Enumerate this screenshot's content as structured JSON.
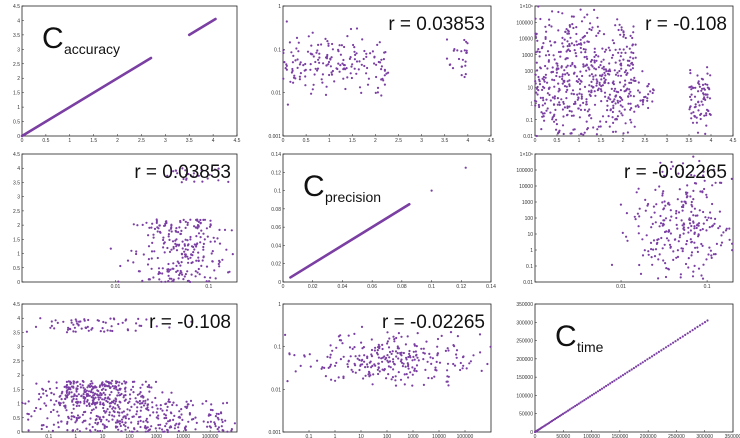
{
  "chart_data": [
    {
      "type": "line",
      "title": "",
      "diagonal_label": {
        "main": "C",
        "sub": "accuracy"
      },
      "x_ticks": [
        "0",
        "0.5",
        "1",
        "1.5",
        "2",
        "2.5",
        "3",
        "3.5",
        "4",
        "4.5"
      ],
      "y_ticks": [
        "0",
        "0.5",
        "1",
        "1.5",
        "2",
        "2.5",
        "3",
        "3.5",
        "4",
        "4.5"
      ],
      "xlim": [
        0,
        4.5
      ],
      "ylim": [
        0,
        4.5
      ],
      "series": [
        {
          "x": [
            0.0,
            2.7
          ],
          "y": [
            0.0,
            2.7
          ]
        },
        {
          "x": [
            3.5,
            4.05
          ],
          "y": [
            3.5,
            4.05
          ]
        }
      ]
    },
    {
      "type": "scatter",
      "annotation": "r = 0.03853",
      "x_ticks": [
        "0",
        "0.5",
        "1",
        "1.5",
        "2",
        "2.5",
        "3",
        "3.5",
        "4",
        "4.5"
      ],
      "y_ticks": [
        "0.001",
        "0.01",
        "0.1",
        "1"
      ],
      "xlim": [
        0,
        4.5
      ],
      "ylim": [
        0.001,
        1
      ],
      "y_scale": "log",
      "clusters": [
        {
          "x_range": [
            0.0,
            2.3
          ],
          "y_log_center": -1.35,
          "y_log_spread": 0.35,
          "n": 180
        },
        {
          "x_range": [
            3.5,
            4.0
          ],
          "y_log_center": -1.2,
          "y_log_spread": 0.3,
          "n": 25
        }
      ]
    },
    {
      "type": "scatter",
      "annotation": "r = -0.108",
      "x_ticks": [
        "0",
        "0.5",
        "1",
        "1.5",
        "2",
        "2.5",
        "3",
        "3.5",
        "4",
        "4.5"
      ],
      "y_ticks": [
        "0.01",
        "0.1",
        "1",
        "10",
        "100",
        "1000",
        "10000",
        "100000",
        "1×10⁶"
      ],
      "xlim": [
        0,
        4.5
      ],
      "ylim": [
        0.01,
        1000000
      ],
      "y_scale": "log",
      "clusters": [
        {
          "x_range": [
            0.0,
            2.3
          ],
          "y_log_center": 1.5,
          "y_log_spread": 2.2,
          "n": 600
        },
        {
          "x_range": [
            2.3,
            2.7
          ],
          "y_log_center": 0.5,
          "y_log_spread": 0.6,
          "n": 25
        },
        {
          "x_range": [
            3.5,
            4.0
          ],
          "y_log_center": 0.2,
          "y_log_spread": 1.0,
          "n": 80
        }
      ]
    },
    {
      "type": "scatter",
      "annotation": "r = 0.03853",
      "x_ticks": [
        "0.01",
        "0.1"
      ],
      "y_ticks": [
        "0",
        "0.5",
        "1",
        "1.5",
        "2",
        "2.5",
        "3",
        "3.5",
        "4",
        "4.5"
      ],
      "xlim": [
        0.001,
        0.2
      ],
      "x_scale": "log",
      "ylim": [
        0,
        4.5
      ],
      "clusters": [
        {
          "x_log_center": -1.3,
          "x_log_spread": 0.28,
          "y_range": [
            0.0,
            2.2
          ],
          "n": 260
        },
        {
          "x_log_center": -1.2,
          "x_log_spread": 0.22,
          "y_range": [
            3.5,
            4.0
          ],
          "n": 25
        }
      ]
    },
    {
      "type": "line",
      "diagonal_label": {
        "main": "C",
        "sub": "precision"
      },
      "x_ticks": [
        "0",
        "0.02",
        "0.04",
        "0.06",
        "0.08",
        "0.1",
        "0.12",
        "0.14"
      ],
      "y_ticks": [
        "0",
        "0.02",
        "0.04",
        "0.06",
        "0.08",
        "0.1",
        "0.12",
        "0.14"
      ],
      "xlim": [
        0,
        0.14
      ],
      "ylim": [
        0,
        0.14
      ],
      "series": [
        {
          "x": [
            0.005,
            0.085
          ],
          "y": [
            0.005,
            0.085
          ]
        }
      ],
      "outliers": [
        {
          "x": 0.1,
          "y": 0.1
        },
        {
          "x": 0.123,
          "y": 0.125
        }
      ]
    },
    {
      "type": "scatter",
      "annotation": "r = -0.02265",
      "x_ticks": [
        "0.01",
        "0.1"
      ],
      "y_ticks": [
        "0.01",
        "0.1",
        "1",
        "10",
        "100",
        "1000",
        "10000",
        "100000",
        "1×10⁶"
      ],
      "xlim": [
        0.001,
        0.2
      ],
      "x_scale": "log",
      "ylim": [
        0.01,
        1000000
      ],
      "y_scale": "log",
      "clusters": [
        {
          "x_log_center": -1.3,
          "x_log_spread": 0.3,
          "y_log_center": 1.5,
          "y_log_spread": 1.7,
          "n": 280
        }
      ]
    },
    {
      "type": "scatter",
      "annotation": "r = -0.108",
      "x_ticks": [
        "0.1",
        "1",
        "10",
        "100",
        "1000",
        "10000",
        "100000"
      ],
      "y_ticks": [
        "0",
        "0.5",
        "1",
        "1.5",
        "2",
        "2.5",
        "3",
        "3.5",
        "4",
        "4.5"
      ],
      "xlim": [
        0.01,
        1000000
      ],
      "x_scale": "log",
      "ylim": [
        0,
        4.5
      ],
      "clusters": [
        {
          "x_log_center": 0.8,
          "x_log_spread": 1.0,
          "y_range": [
            1.0,
            1.8
          ],
          "n": 260
        },
        {
          "x_log_center": 2.0,
          "x_log_spread": 2.2,
          "y_range": [
            0.0,
            1.1
          ],
          "n": 380
        },
        {
          "x_log_center": 0.5,
          "x_log_spread": 1.3,
          "y_range": [
            3.5,
            4.0
          ],
          "n": 70
        }
      ]
    },
    {
      "type": "scatter",
      "annotation": "r = -0.02265",
      "x_ticks": [
        "0.1",
        "1",
        "10",
        "100",
        "1000",
        "10000",
        "100000"
      ],
      "y_ticks": [
        "0.001",
        "0.01",
        "0.1",
        "1"
      ],
      "xlim": [
        0.01,
        1000000
      ],
      "x_scale": "log",
      "ylim": [
        0.001,
        1
      ],
      "y_scale": "log",
      "clusters": [
        {
          "x_log_center": 2.0,
          "x_log_spread": 1.8,
          "y_log_center": -1.35,
          "y_log_spread": 0.3,
          "n": 280
        }
      ]
    },
    {
      "type": "scatter",
      "diagonal_label": {
        "main": "C",
        "sub": "time"
      },
      "x_ticks": [
        "0",
        "50000",
        "100000",
        "150000",
        "200000",
        "250000",
        "300000",
        "350000"
      ],
      "y_ticks": [
        "0",
        "50000",
        "100000",
        "150000",
        "200000",
        "250000",
        "300000",
        "350000"
      ],
      "xlim": [
        0,
        350000
      ],
      "ylim": [
        0,
        350000
      ],
      "diagonal_points": {
        "from": 0,
        "to": 305000,
        "n": 90
      }
    }
  ],
  "style": {
    "point_color": "#7b3fa3",
    "axis_color": "#222222"
  }
}
